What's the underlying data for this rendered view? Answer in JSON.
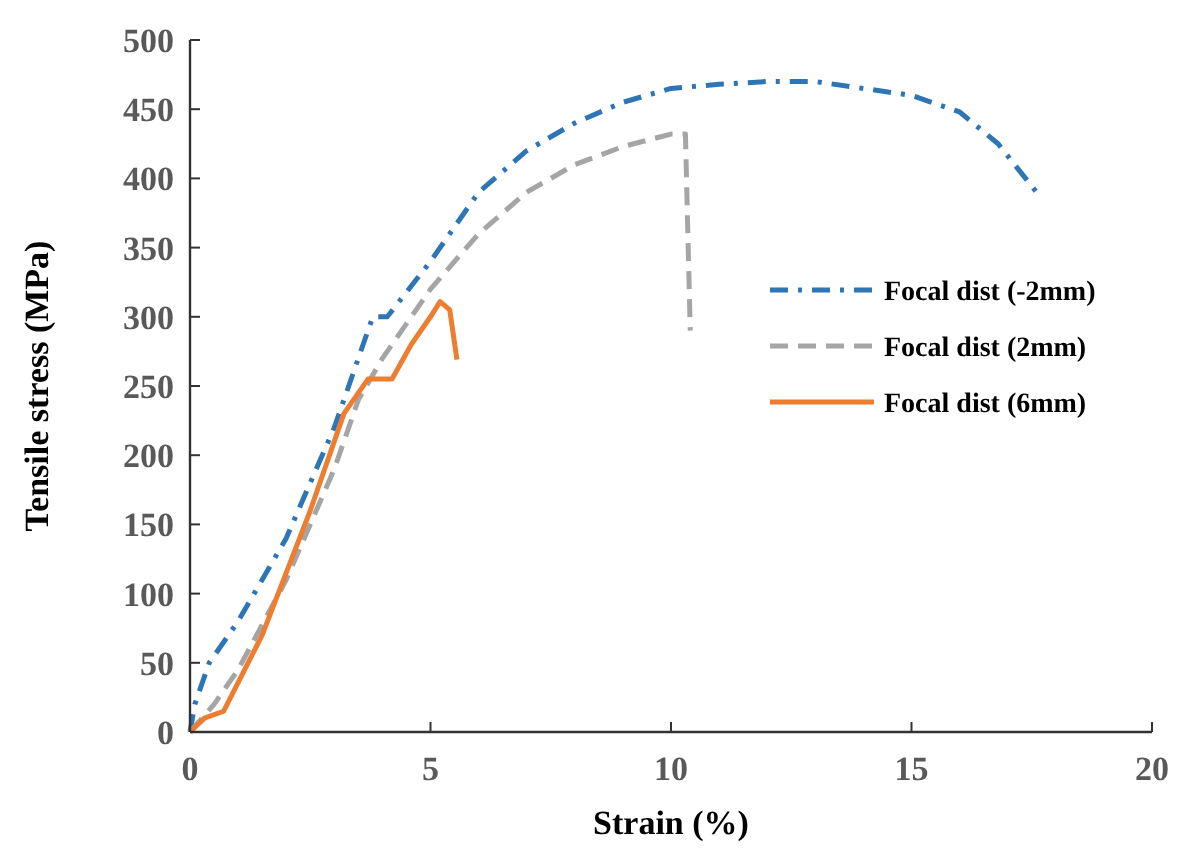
{
  "chart_data": {
    "type": "line",
    "xlabel": "Strain (%)",
    "ylabel": "Tensile stress (MPa)",
    "xlim": [
      0,
      20
    ],
    "xticks": [
      0,
      5,
      10,
      15,
      20
    ],
    "ylim": [
      0,
      500
    ],
    "yticks": [
      0,
      50,
      100,
      150,
      200,
      250,
      300,
      350,
      400,
      450,
      500
    ],
    "grid": false,
    "legend": "right",
    "series": [
      {
        "name": "Focal dist (-2mm)",
        "color": "#2e75b6",
        "line_style": "dashdot",
        "x": [
          0,
          0.1,
          0.4,
          1,
          2,
          3,
          3.5,
          3.8,
          4.1,
          5,
          6,
          7,
          8,
          9,
          10,
          11,
          12,
          13,
          14,
          15,
          16,
          16.8,
          17.6
        ],
        "values": [
          0,
          20,
          50,
          80,
          140,
          220,
          270,
          300,
          300,
          340,
          390,
          420,
          440,
          455,
          465,
          468,
          470,
          470,
          465,
          460,
          448,
          425,
          390
        ]
      },
      {
        "name": "Focal dist (2mm)",
        "color": "#a5a5a5",
        "line_style": "dashed",
        "x": [
          0,
          0.5,
          1,
          2,
          3,
          3.5,
          4,
          5,
          6,
          7,
          8,
          9,
          10,
          10.3,
          10.4
        ],
        "values": [
          0,
          20,
          45,
          110,
          190,
          240,
          270,
          320,
          360,
          390,
          410,
          423,
          432,
          432,
          290
        ]
      },
      {
        "name": "Focal dist (6mm)",
        "color": "#ed7d31",
        "line_style": "solid",
        "x": [
          0,
          0.3,
          0.7,
          1.5,
          2.5,
          3.2,
          3.7,
          4.0,
          4.2,
          4.6,
          5.0,
          5.2,
          5.4,
          5.55
        ],
        "values": [
          0,
          10,
          15,
          70,
          160,
          230,
          255,
          255,
          255,
          280,
          300,
          311,
          305,
          269
        ]
      }
    ]
  }
}
